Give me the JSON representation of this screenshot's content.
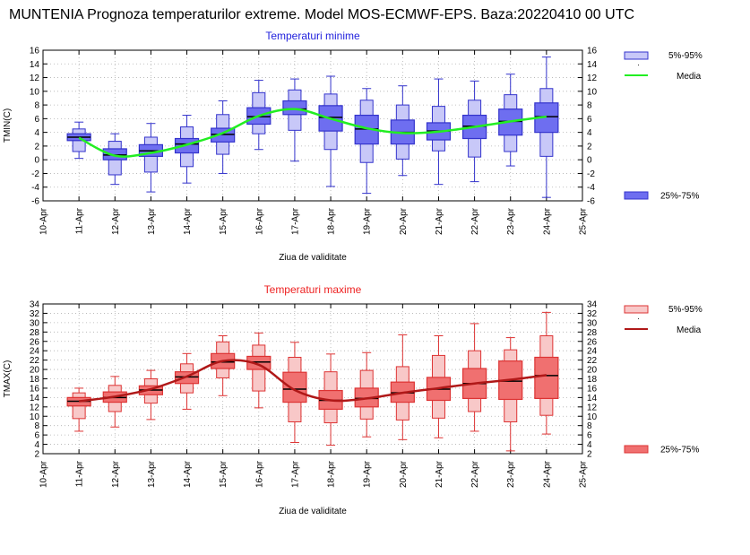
{
  "title": "MUNTENIA  Prognoza temperaturilor extreme.  Model MOS-ECMWF-EPS. Baza:20220410 00 UTC",
  "colors": {
    "min_dark": "#3333cc",
    "min_fill": "#6e6ef0",
    "min_light": "#c8c8f8",
    "min_mean": "#22ee22",
    "max_dark": "#dd3333",
    "max_fill": "#f07070",
    "max_light": "#f8c8c8",
    "max_mean": "#b01818"
  },
  "chart_data": [
    {
      "type": "box",
      "id": "tmin",
      "title": "Temperaturi minime",
      "xlabel": "Ziua de validitate",
      "ylabel": "TMIN(C)",
      "ylim": [
        -6,
        16
      ],
      "yticks": [
        -6,
        -4,
        -2,
        0,
        2,
        4,
        6,
        8,
        10,
        12,
        14,
        16
      ],
      "xticks": [
        "10-Apr",
        "11-Apr",
        "12-Apr",
        "13-Apr",
        "14-Apr",
        "15-Apr",
        "16-Apr",
        "17-Apr",
        "18-Apr",
        "19-Apr",
        "20-Apr",
        "21-Apr",
        "22-Apr",
        "23-Apr",
        "24-Apr",
        "25-Apr"
      ],
      "legend": {
        "outer": "5%-95%",
        "mean": "Media",
        "inner": "25%-75%"
      },
      "boxes": [
        {
          "day": 1,
          "min": 0.2,
          "p5": 1.2,
          "p25": 2.8,
          "p75": 3.8,
          "p95": 4.5,
          "max": 5.5,
          "median": 3.3
        },
        {
          "day": 2,
          "min": -3.6,
          "p5": -2.2,
          "p25": 0,
          "p75": 1.6,
          "p95": 2.7,
          "max": 3.8,
          "median": 0.7
        },
        {
          "day": 3,
          "min": -4.7,
          "p5": -1.8,
          "p25": 0.5,
          "p75": 2.2,
          "p95": 3.3,
          "max": 5.3,
          "median": 1.3
        },
        {
          "day": 4,
          "min": -3.4,
          "p5": -1.0,
          "p25": 1.0,
          "p75": 3.1,
          "p95": 4.8,
          "max": 6.5,
          "median": 2.3
        },
        {
          "day": 5,
          "min": -2.0,
          "p5": 0.8,
          "p25": 2.6,
          "p75": 4.6,
          "p95": 6.6,
          "max": 8.6,
          "median": 3.7
        },
        {
          "day": 6,
          "min": 1.5,
          "p5": 3.8,
          "p25": 5.2,
          "p75": 7.6,
          "p95": 9.8,
          "max": 11.6,
          "median": 6.3
        },
        {
          "day": 7,
          "min": -0.2,
          "p5": 4.3,
          "p25": 6.6,
          "p75": 8.6,
          "p95": 10.2,
          "max": 11.8,
          "median": 7.4
        },
        {
          "day": 8,
          "min": -3.9,
          "p5": 1.5,
          "p25": 4.2,
          "p75": 7.9,
          "p95": 9.6,
          "max": 12.2,
          "median": 6.2
        },
        {
          "day": 9,
          "min": -4.9,
          "p5": -0.4,
          "p25": 2.3,
          "p75": 6.5,
          "p95": 8.7,
          "max": 10.4,
          "median": 4.5
        },
        {
          "day": 10,
          "min": -2.3,
          "p5": 0.1,
          "p25": 2.3,
          "p75": 5.8,
          "p95": 8.0,
          "max": 10.8,
          "median": 4.0
        },
        {
          "day": 11,
          "min": -3.6,
          "p5": 1.3,
          "p25": 2.9,
          "p75": 5.4,
          "p95": 7.8,
          "max": 11.8,
          "median": 4.2
        },
        {
          "day": 12,
          "min": -3.2,
          "p5": 0.4,
          "p25": 3.1,
          "p75": 6.5,
          "p95": 8.7,
          "max": 11.5,
          "median": 4.9
        },
        {
          "day": 13,
          "min": -0.9,
          "p5": 1.2,
          "p25": 3.6,
          "p75": 7.4,
          "p95": 9.5,
          "max": 12.5,
          "median": 5.6
        },
        {
          "day": 14,
          "min": -5.5,
          "p5": 0.5,
          "p25": 4.0,
          "p75": 8.3,
          "p95": 10.4,
          "max": 15.0,
          "median": 6.3
        }
      ],
      "mean": [
        3.2,
        0.6,
        1.0,
        2.2,
        3.9,
        6.4,
        7.4,
        6.0,
        4.6,
        3.9,
        4.1,
        4.8,
        5.6,
        6.3
      ]
    },
    {
      "type": "box",
      "id": "tmax",
      "title": "Temperaturi maxime",
      "xlabel": "Ziua de validitate",
      "ylabel": "TMAX(C)",
      "ylim": [
        2,
        34
      ],
      "yticks": [
        2,
        4,
        6,
        8,
        10,
        12,
        14,
        16,
        18,
        20,
        22,
        24,
        26,
        28,
        30,
        32,
        34
      ],
      "xticks": [
        "10-Apr",
        "11-Apr",
        "12-Apr",
        "13-Apr",
        "14-Apr",
        "15-Apr",
        "16-Apr",
        "17-Apr",
        "18-Apr",
        "19-Apr",
        "20-Apr",
        "21-Apr",
        "22-Apr",
        "23-Apr",
        "24-Apr",
        "25-Apr"
      ],
      "legend": {
        "outer": "5%-95%",
        "mean": "Media",
        "inner": "25%-75%"
      },
      "boxes": [
        {
          "day": 1,
          "min": 6.8,
          "p5": 9.5,
          "p25": 12.2,
          "p75": 14.0,
          "p95": 15.0,
          "max": 16.0,
          "median": 13.2
        },
        {
          "day": 2,
          "min": 7.7,
          "p5": 11.0,
          "p25": 13.0,
          "p75": 15.2,
          "p95": 16.6,
          "max": 18.5,
          "median": 14.0
        },
        {
          "day": 3,
          "min": 9.3,
          "p5": 12.8,
          "p25": 14.6,
          "p75": 16.5,
          "p95": 18.0,
          "max": 19.8,
          "median": 15.6
        },
        {
          "day": 4,
          "min": 11.5,
          "p5": 15.0,
          "p25": 17.0,
          "p75": 19.5,
          "p95": 21.2,
          "max": 23.4,
          "median": 18.4
        },
        {
          "day": 5,
          "min": 14.4,
          "p5": 18.2,
          "p25": 20.2,
          "p75": 23.4,
          "p95": 25.9,
          "max": 27.2,
          "median": 21.6
        },
        {
          "day": 6,
          "min": 11.8,
          "p5": 15.4,
          "p25": 20.0,
          "p75": 22.8,
          "p95": 25.2,
          "max": 27.8,
          "median": 21.6
        },
        {
          "day": 7,
          "min": 4.4,
          "p5": 8.8,
          "p25": 13.0,
          "p75": 19.4,
          "p95": 22.6,
          "max": 25.8,
          "median": 15.8
        },
        {
          "day": 8,
          "min": 3.8,
          "p5": 8.6,
          "p25": 11.5,
          "p75": 15.5,
          "p95": 19.5,
          "max": 23.3,
          "median": 13.4
        },
        {
          "day": 9,
          "min": 5.6,
          "p5": 9.4,
          "p25": 12.0,
          "p75": 16.0,
          "p95": 19.8,
          "max": 23.6,
          "median": 13.8
        },
        {
          "day": 10,
          "min": 5.0,
          "p5": 9.2,
          "p25": 13.0,
          "p75": 17.3,
          "p95": 20.6,
          "max": 27.4,
          "median": 15.0
        },
        {
          "day": 11,
          "min": 5.4,
          "p5": 9.6,
          "p25": 13.4,
          "p75": 18.3,
          "p95": 23.0,
          "max": 27.2,
          "median": 15.8
        },
        {
          "day": 12,
          "min": 6.8,
          "p5": 11.0,
          "p25": 13.8,
          "p75": 20.2,
          "p95": 24.0,
          "max": 29.8,
          "median": 17.0
        },
        {
          "day": 13,
          "min": 2.6,
          "p5": 8.8,
          "p25": 13.6,
          "p75": 21.8,
          "p95": 24.2,
          "max": 26.8,
          "median": 17.5
        },
        {
          "day": 14,
          "min": 6.2,
          "p5": 10.2,
          "p25": 13.8,
          "p75": 22.6,
          "p95": 27.2,
          "max": 32.2,
          "median": 18.7
        }
      ],
      "mean": [
        13.2,
        14.2,
        15.8,
        18.5,
        21.8,
        21.0,
        15.6,
        13.4,
        13.8,
        15.0,
        16.0,
        17.0,
        17.8,
        18.8
      ]
    }
  ]
}
